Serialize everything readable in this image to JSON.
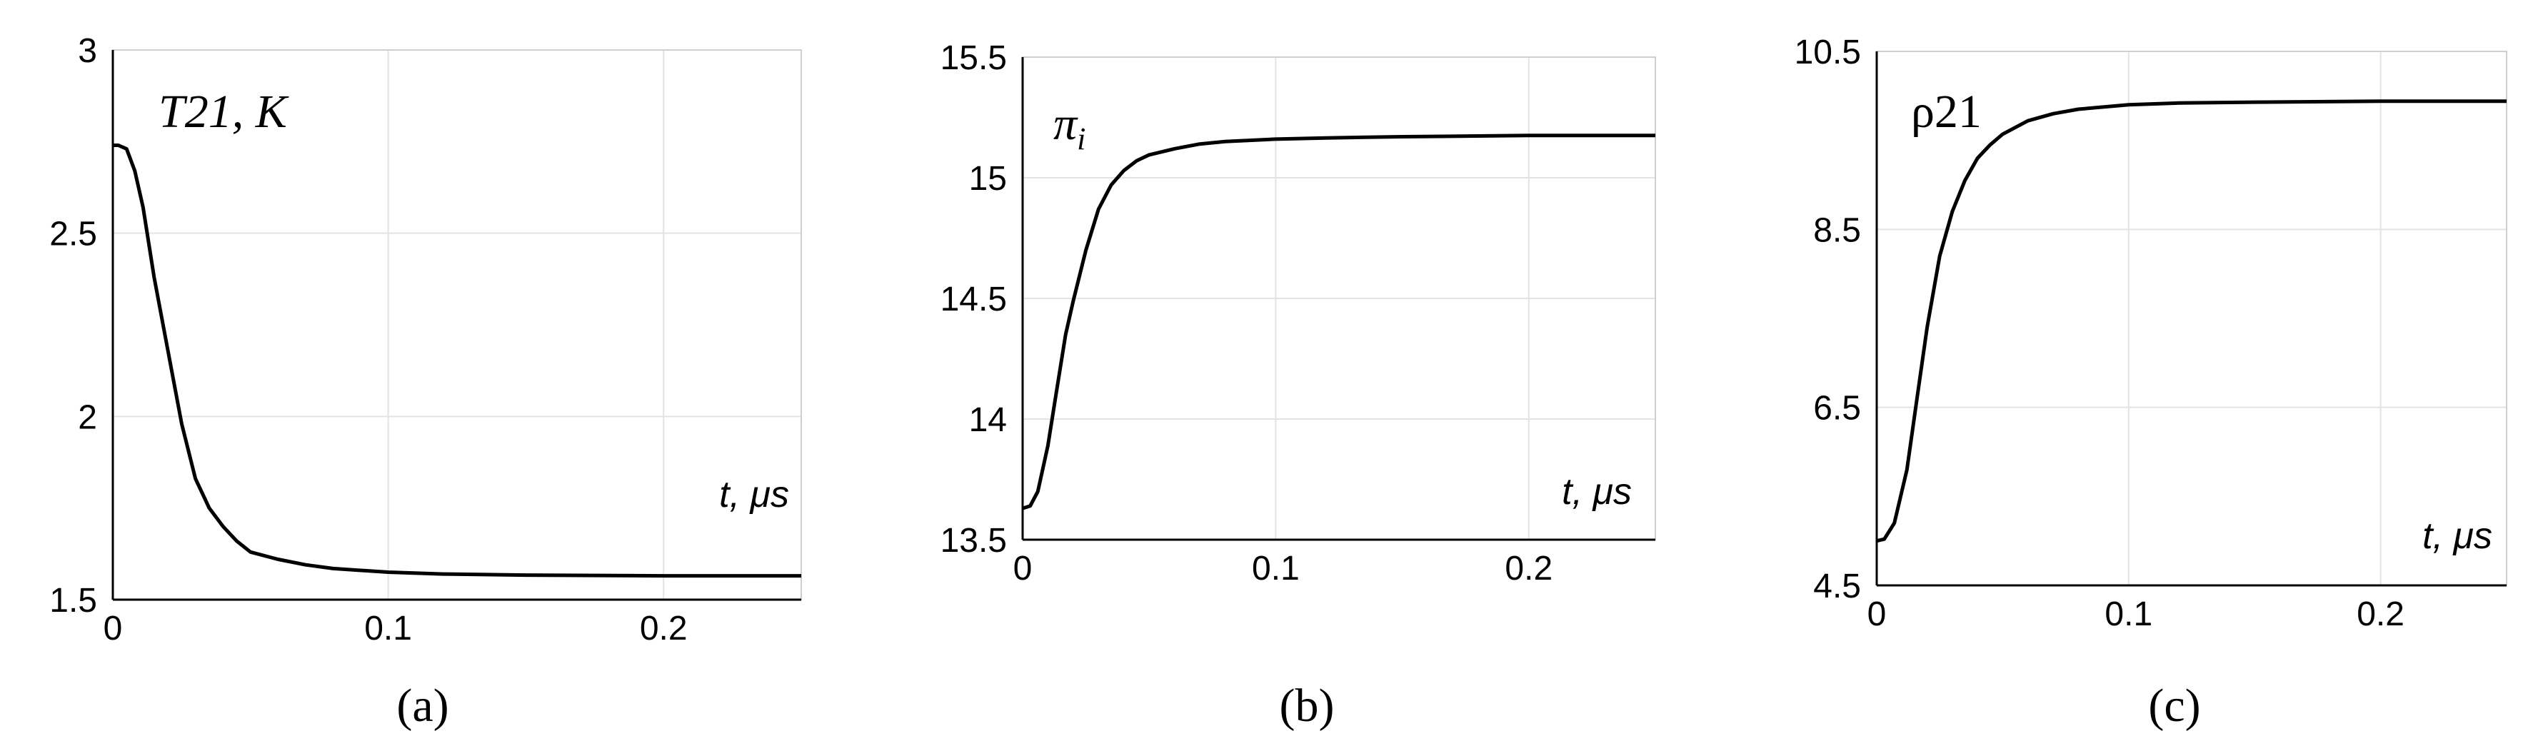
{
  "chart_data": [
    {
      "type": "line",
      "panel_label": "(a)",
      "title": "T21, K",
      "xlabel": "t, μs",
      "ylabel": "",
      "xlim": [
        0,
        0.25
      ],
      "ylim": [
        1.5,
        3
      ],
      "x_ticks": [
        "0",
        "0.1",
        "0.2"
      ],
      "y_ticks": [
        "1.5",
        "2",
        "2.5",
        "3"
      ],
      "grid": true,
      "series": [
        {
          "x": [
            0,
            0.002,
            0.005,
            0.008,
            0.011,
            0.015,
            0.02,
            0.025,
            0.03,
            0.035,
            0.04,
            0.045,
            0.05,
            0.06,
            0.07,
            0.08,
            0.1,
            0.12,
            0.15,
            0.2,
            0.25
          ],
          "y": [
            2.74,
            2.74,
            2.73,
            2.67,
            2.57,
            2.38,
            2.18,
            1.98,
            1.83,
            1.75,
            1.7,
            1.66,
            1.63,
            1.61,
            1.595,
            1.585,
            1.575,
            1.57,
            1.567,
            1.565,
            1.565
          ]
        }
      ]
    },
    {
      "type": "line",
      "panel_label": "(b)",
      "title": "π",
      "title_sub": "i",
      "xlabel": "t, μs",
      "ylabel": "",
      "xlim": [
        0,
        0.25
      ],
      "ylim": [
        13.5,
        15.5
      ],
      "x_ticks": [
        "0",
        "0.1",
        "0.2"
      ],
      "y_ticks": [
        "13.5",
        "14",
        "14.5",
        "15",
        "15.5"
      ],
      "grid": true,
      "series": [
        {
          "x": [
            0,
            0.003,
            0.006,
            0.01,
            0.013,
            0.017,
            0.02,
            0.025,
            0.03,
            0.035,
            0.04,
            0.045,
            0.05,
            0.06,
            0.07,
            0.08,
            0.1,
            0.12,
            0.15,
            0.2,
            0.25
          ],
          "y": [
            13.63,
            13.64,
            13.7,
            13.89,
            14.09,
            14.35,
            14.49,
            14.7,
            14.87,
            14.97,
            15.03,
            15.07,
            15.095,
            15.12,
            15.14,
            15.15,
            15.16,
            15.165,
            15.17,
            15.175,
            15.175
          ]
        }
      ]
    },
    {
      "type": "line",
      "panel_label": "(c)",
      "title": "ρ21",
      "xlabel": "t, μs",
      "ylabel": "",
      "xlim": [
        0,
        0.25
      ],
      "ylim": [
        4.5,
        10.5
      ],
      "x_ticks": [
        "0",
        "0.1",
        "0.2"
      ],
      "y_ticks": [
        "4.5",
        "6.5",
        "8.5",
        "10.5"
      ],
      "grid": true,
      "series": [
        {
          "x": [
            0,
            0.003,
            0.007,
            0.012,
            0.016,
            0.02,
            0.025,
            0.03,
            0.035,
            0.04,
            0.045,
            0.05,
            0.06,
            0.07,
            0.08,
            0.1,
            0.12,
            0.15,
            0.2,
            0.25
          ],
          "y": [
            5.0,
            5.02,
            5.2,
            5.8,
            6.6,
            7.4,
            8.2,
            8.7,
            9.05,
            9.3,
            9.45,
            9.57,
            9.72,
            9.8,
            9.85,
            9.9,
            9.92,
            9.93,
            9.94,
            9.94
          ]
        }
      ]
    }
  ]
}
